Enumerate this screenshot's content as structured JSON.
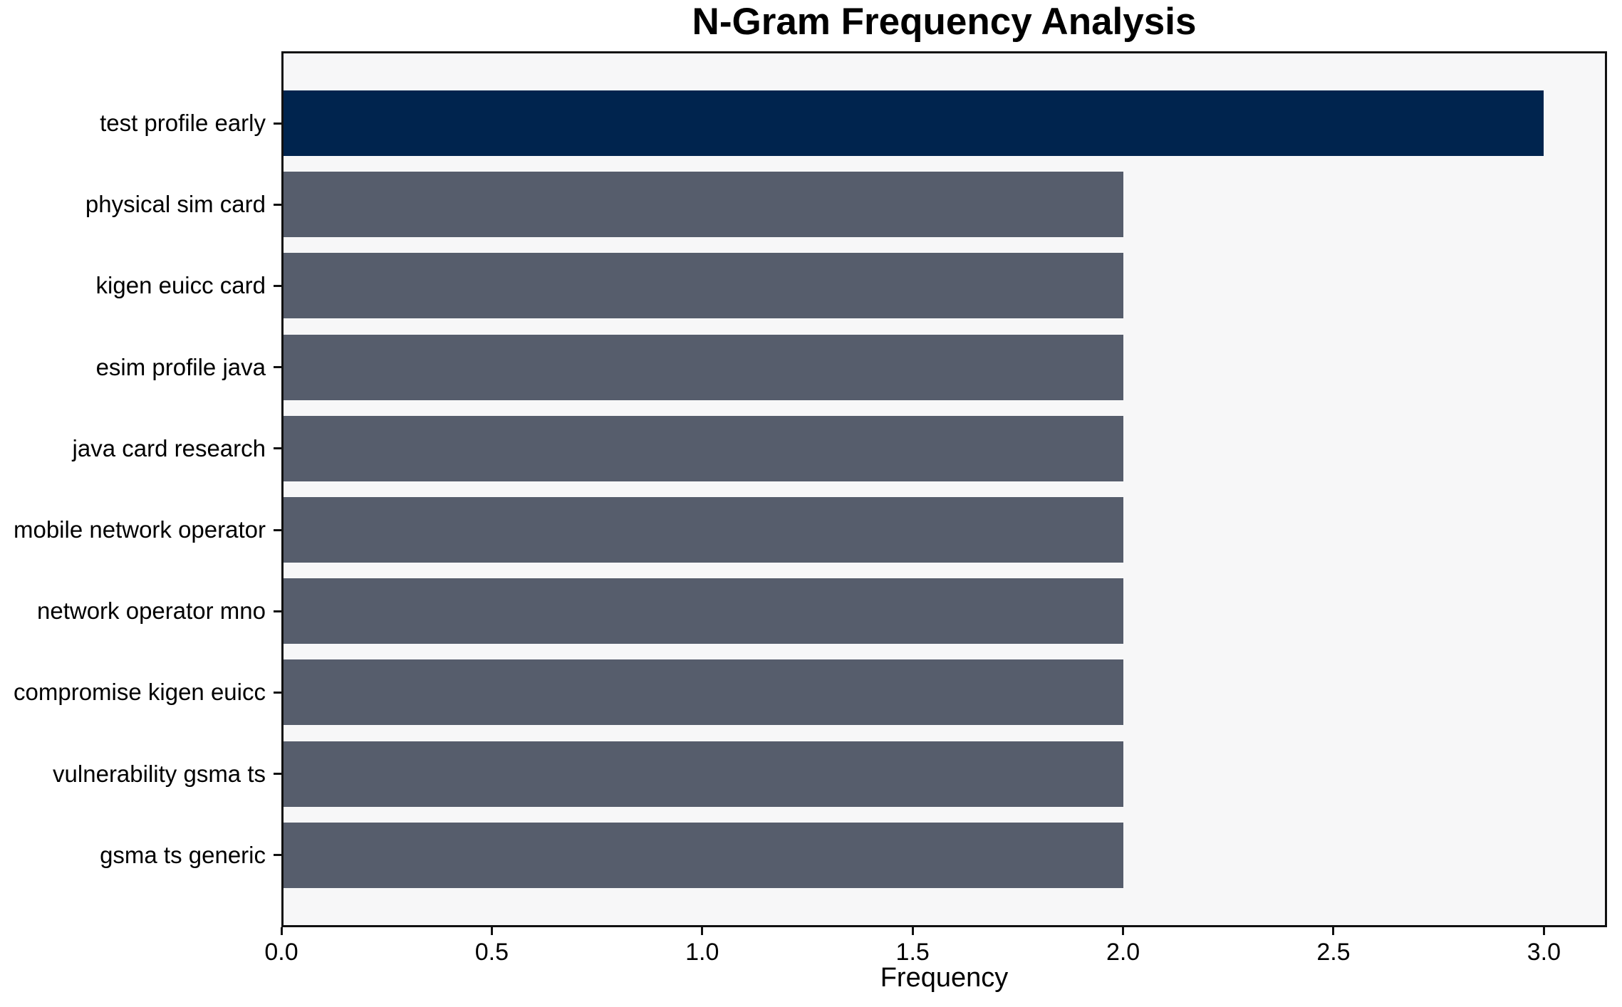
{
  "chart_data": {
    "type": "bar",
    "orientation": "horizontal",
    "title": "N-Gram Frequency Analysis",
    "xlabel": "Frequency",
    "ylabel": "",
    "categories": [
      "test profile early",
      "physical sim card",
      "kigen euicc card",
      "esim profile java",
      "java card research",
      "mobile network operator",
      "network operator mno",
      "compromise kigen euicc",
      "vulnerability gsma ts",
      "gsma ts generic"
    ],
    "values": [
      3,
      2,
      2,
      2,
      2,
      2,
      2,
      2,
      2,
      2
    ],
    "xlim": [
      0,
      3.15
    ],
    "x_ticks": [
      0.0,
      0.5,
      1.0,
      1.5,
      2.0,
      2.5,
      3.0
    ],
    "x_tick_labels": [
      "0.0",
      "0.5",
      "1.0",
      "1.5",
      "2.0",
      "2.5",
      "3.0"
    ],
    "grid": false,
    "legend": false,
    "highlight_index": 0,
    "colors": {
      "bar_highlight": "#00244e",
      "bar_default": "#565d6c",
      "plot_bg": "#f7f7f8",
      "figure_bg": "#ffffff",
      "spine": "#111111",
      "text": "#000000"
    }
  }
}
